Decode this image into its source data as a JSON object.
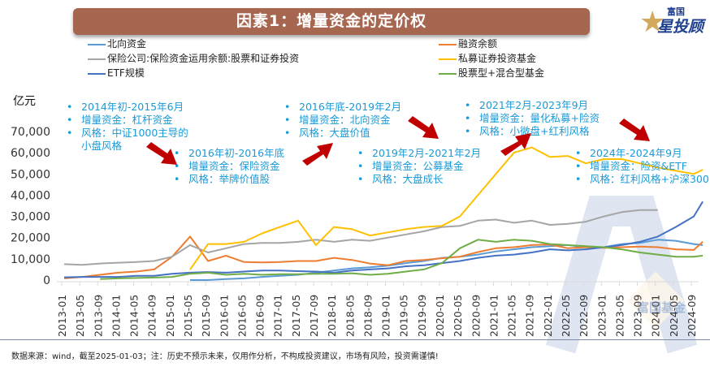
{
  "header": {
    "title": "因素1：增量资金的定价权"
  },
  "logo": {
    "line1": "富国",
    "line2": "星投顾",
    "icon": "star-icon"
  },
  "watermark": {
    "text": "富国基金"
  },
  "footer": {
    "text": "数据来源：wind，截至2025-01-03；注：历史不预示未来，仅用作分析，不构成投资建议，市场有风险，投资需谨慎!"
  },
  "annotations": [
    {
      "lines": [
        "2014年初-2015年6月",
        "增量资金：杠杆资金",
        "风格：中证1000主导的"
      ],
      "extra": "小盘风格"
    },
    {
      "lines": [
        "2016年初-2016年底",
        "增量资金：保险资金",
        "风格：举牌价值股"
      ],
      "extra": ""
    },
    {
      "lines": [
        "2016年底-2019年2月",
        "增量资金：北向资金",
        "风格：大盘价值"
      ],
      "extra": ""
    },
    {
      "lines": [
        "2019年2月-2021年2月",
        "增量资金：公募基金",
        "风格：大盘成长"
      ],
      "extra": ""
    },
    {
      "lines": [
        "2021年2月-2023年9月",
        "增量资金：量化私募+险资",
        "风格：小微盘+红利风格"
      ],
      "extra": ""
    },
    {
      "lines": [
        "2024年-2024年9月",
        "增量资金：险资&ETF",
        "风格：红利风格+沪深300"
      ],
      "extra": ""
    }
  ],
  "chart_data": {
    "type": "line",
    "title": "因素1：增量资金的定价权",
    "ylabel": "亿元",
    "xlabel": "",
    "ylim": [
      0,
      70000
    ],
    "yticks": [
      0,
      10000,
      20000,
      30000,
      40000,
      50000,
      60000,
      70000
    ],
    "ytick_labels": [
      "0",
      "10,000",
      "20,000",
      "30,000",
      "40,000",
      "50,000",
      "60,000",
      "70,000"
    ],
    "grid": false,
    "legend_position": "top",
    "x_tick_labels": [
      "2013-01",
      "2013-05",
      "2013-09",
      "2014-01",
      "2014-05",
      "2014-09",
      "2015-01",
      "2015-05",
      "2015-09",
      "2016-01",
      "2016-05",
      "2016-09",
      "2017-01",
      "2017-05",
      "2017-09",
      "2018-01",
      "2018-05",
      "2018-09",
      "2019-01",
      "2019-05",
      "2019-09",
      "2020-01",
      "2020-05",
      "2020-09",
      "2021-01",
      "2021-05",
      "2021-09",
      "2022-01",
      "2022-05",
      "2022-09",
      "2023-01",
      "2023-05",
      "2023-09",
      "2024-01",
      "2024-05",
      "2024-09"
    ],
    "x": [
      "2013-01",
      "2013-05",
      "2013-09",
      "2014-01",
      "2014-05",
      "2014-09",
      "2015-01",
      "2015-05",
      "2015-09",
      "2016-01",
      "2016-05",
      "2016-09",
      "2017-01",
      "2017-05",
      "2017-09",
      "2018-01",
      "2018-05",
      "2018-09",
      "2019-01",
      "2019-05",
      "2019-09",
      "2020-01",
      "2020-05",
      "2020-09",
      "2021-01",
      "2021-05",
      "2021-09",
      "2022-01",
      "2022-05",
      "2022-09",
      "2023-01",
      "2023-05",
      "2023-09",
      "2024-01",
      "2024-05",
      "2024-09",
      "2024-11"
    ],
    "series": [
      {
        "name": "北向资金",
        "color": "#5b9bd5",
        "values": [
          null,
          null,
          null,
          null,
          null,
          null,
          null,
          0,
          0,
          500,
          800,
          1500,
          2000,
          2500,
          3500,
          4500,
          5500,
          6000,
          6800,
          8000,
          9000,
          10500,
          11000,
          12000,
          13500,
          14500,
          15500,
          16000,
          16500,
          15500,
          15500,
          17000,
          17500,
          19000,
          18500,
          17000,
          16500
        ]
      },
      {
        "name": "融资余额",
        "color": "#ed7d31",
        "values": [
          800,
          1500,
          2500,
          3500,
          4000,
          5000,
          11000,
          20500,
          9000,
          11500,
          8500,
          8300,
          8500,
          9000,
          9000,
          10500,
          9500,
          7800,
          7000,
          9000,
          9500,
          10300,
          11000,
          13200,
          15000,
          15500,
          16500,
          16800,
          15000,
          15500,
          15200,
          15500,
          15800,
          15500,
          14500,
          14200,
          18000
        ]
      },
      {
        "name": "保险公司:保险资金运用余额:股票和证券投资",
        "color": "#a5a5a5",
        "values": [
          7500,
          7200,
          7800,
          8200,
          8500,
          9000,
          11000,
          16500,
          13000,
          15000,
          17000,
          17500,
          17500,
          18000,
          19000,
          18000,
          19000,
          18500,
          20000,
          21500,
          23000,
          25000,
          25500,
          28000,
          28500,
          27000,
          28000,
          26000,
          26500,
          27500,
          30000,
          32000,
          33000,
          33000,
          null,
          null,
          null
        ]
      },
      {
        "name": "私募证券投资基金",
        "color": "#ffc000",
        "values": [
          null,
          null,
          null,
          null,
          null,
          null,
          null,
          5000,
          17000,
          17000,
          18000,
          22000,
          25000,
          28000,
          16500,
          25000,
          24000,
          21000,
          22500,
          24000,
          25000,
          25500,
          30000,
          40000,
          50000,
          60000,
          62500,
          58000,
          58500,
          55000,
          57000,
          57000,
          55000,
          53000,
          51500,
          50000,
          52000
        ]
      },
      {
        "name": "ETF规模",
        "color": "#4472c4",
        "values": [
          1300,
          1500,
          1500,
          1500,
          2000,
          2000,
          3000,
          3500,
          3800,
          3500,
          4000,
          4500,
          4500,
          4200,
          4000,
          3500,
          4500,
          5000,
          5500,
          6500,
          7000,
          8000,
          9000,
          10500,
          11500,
          12000,
          13000,
          14500,
          14000,
          14500,
          15500,
          16500,
          18000,
          20500,
          25000,
          30000,
          37000
        ]
      },
      {
        "name": "股票型+混合型基金",
        "color": "#70ad47",
        "values": [
          null,
          null,
          500,
          800,
          1000,
          1200,
          1500,
          3000,
          3500,
          2500,
          3000,
          2500,
          2800,
          2800,
          3000,
          3000,
          3200,
          2500,
          3000,
          4000,
          5000,
          8000,
          15000,
          19000,
          18000,
          19000,
          18500,
          17000,
          16500,
          16000,
          15500,
          14500,
          13000,
          12000,
          11000,
          11000,
          11500
        ]
      }
    ]
  }
}
